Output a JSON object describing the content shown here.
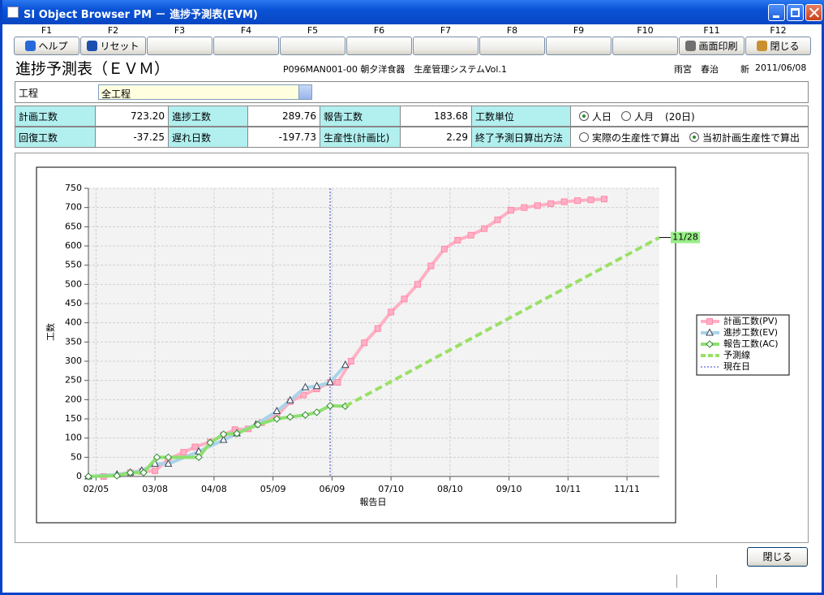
{
  "window": {
    "title": "SI Object Browser PM － 進捗予測表(EVM)"
  },
  "function_keys": [
    {
      "key": "F1",
      "label": "ヘルプ"
    },
    {
      "key": "F2",
      "label": "リセット"
    },
    {
      "key": "F3"
    },
    {
      "key": "F4"
    },
    {
      "key": "F5"
    },
    {
      "key": "F6"
    },
    {
      "key": "F7"
    },
    {
      "key": "F8"
    },
    {
      "key": "F9"
    },
    {
      "key": "F10"
    },
    {
      "key": "F11",
      "label": "画面印刷"
    },
    {
      "key": "F12",
      "label": "閉じる"
    }
  ],
  "header": {
    "title": "進捗予測表（ＥＶＭ）",
    "system": "P096MAN001-00 朝夕洋食器　生産管理システムVol.1",
    "user": "雨宮　春治",
    "status": "新",
    "date": "2011/06/08"
  },
  "filter": {
    "label": "工程",
    "value": "全工程"
  },
  "stats": {
    "rows": [
      {
        "items": [
          {
            "label": "計画工数",
            "value": "723.20"
          },
          {
            "label": "進捗工数",
            "value": "289.76"
          },
          {
            "label": "報告工数",
            "value": "183.68"
          }
        ],
        "option_label": "工数単位",
        "options": [
          {
            "text": "人日",
            "selected": true
          },
          {
            "text": "人月",
            "selected": false
          }
        ],
        "note": "(20日)"
      },
      {
        "items": [
          {
            "label": "回復工数",
            "value": "-37.25"
          },
          {
            "label": "遅れ日数",
            "value": "-197.73"
          },
          {
            "label": "生産性(計画比)",
            "value": "2.29"
          }
        ],
        "option_label": "終了予測日算出方法",
        "options": [
          {
            "text": "実際の生産性で算出",
            "selected": false
          },
          {
            "text": "当初計画生産性で算出",
            "selected": true
          }
        ]
      }
    ]
  },
  "chart_data": {
    "type": "line",
    "x_label": "報告日",
    "y_label": "工数",
    "grid": true,
    "xlim": [
      "02/01",
      "11/28"
    ],
    "xticks": [
      "02/05",
      "03/08",
      "04/08",
      "05/09",
      "06/09",
      "07/10",
      "08/10",
      "09/10",
      "10/11",
      "11/11"
    ],
    "ylim": [
      0,
      750
    ],
    "yticks": [
      0,
      50,
      100,
      150,
      200,
      250,
      300,
      350,
      400,
      450,
      500,
      550,
      600,
      650,
      700,
      750
    ],
    "series": [
      {
        "name": "計画工数(PV)",
        "color": "#ffb0c4",
        "marker_color": "#ff88a8",
        "marker": "square",
        "x": [
          "02/09",
          "02/23",
          "03/01",
          "03/08",
          "03/15",
          "03/23",
          "03/29",
          "04/06",
          "04/13",
          "04/19",
          "04/26",
          "05/03",
          "05/11",
          "05/18",
          "05/25",
          "06/01",
          "06/08",
          "06/12",
          "06/19",
          "06/26",
          "07/03",
          "07/10",
          "07/17",
          "07/24",
          "07/31",
          "08/07",
          "08/14",
          "08/21",
          "08/28",
          "09/04",
          "09/11",
          "09/18",
          "09/25",
          "10/02",
          "10/09",
          "10/16",
          "10/23",
          "10/30"
        ],
        "values": [
          0,
          10,
          13,
          15,
          45,
          63,
          77,
          90,
          108,
          122,
          124,
          140,
          158,
          195,
          212,
          228,
          245,
          245,
          300,
          348,
          385,
          428,
          462,
          500,
          548,
          592,
          615,
          628,
          645,
          668,
          693,
          700,
          705,
          710,
          715,
          718,
          720,
          722
        ]
      },
      {
        "name": "進捗工数(EV)",
        "color": "#a8d4e8",
        "marker_color": "#334455",
        "marker": "triangle",
        "x": [
          "02/01",
          "02/16",
          "02/23",
          "03/01",
          "03/08",
          "03/15",
          "03/31",
          "04/13",
          "04/20",
          "04/30",
          "05/11",
          "05/18",
          "05/26",
          "06/01",
          "06/08",
          "06/16"
        ],
        "values": [
          0,
          5,
          10,
          15,
          33,
          33,
          65,
          95,
          112,
          135,
          170,
          198,
          232,
          235,
          245,
          290
        ]
      },
      {
        "name": "報告工数(AC)",
        "color": "#8ee070",
        "marker_color": "#2e8b2e",
        "marker": "diamond",
        "x": [
          "02/01",
          "02/16",
          "02/23",
          "03/02",
          "03/09",
          "03/15",
          "03/31",
          "04/06",
          "04/13",
          "04/20",
          "05/01",
          "05/11",
          "05/18",
          "05/26",
          "06/01",
          "06/08",
          "06/16"
        ],
        "values": [
          0,
          2,
          10,
          10,
          50,
          50,
          50,
          88,
          110,
          112,
          135,
          150,
          155,
          160,
          167,
          184,
          183
        ]
      },
      {
        "name": "予測線",
        "color": "#99e066",
        "marker": "none",
        "dash": true,
        "x": [
          "06/16",
          "11/28"
        ],
        "values": [
          183,
          622
        ]
      }
    ],
    "reference_line": {
      "name": "現在日",
      "x": "06/08",
      "color": "#3344cc"
    }
  },
  "footer": {
    "close": "閉じる"
  }
}
